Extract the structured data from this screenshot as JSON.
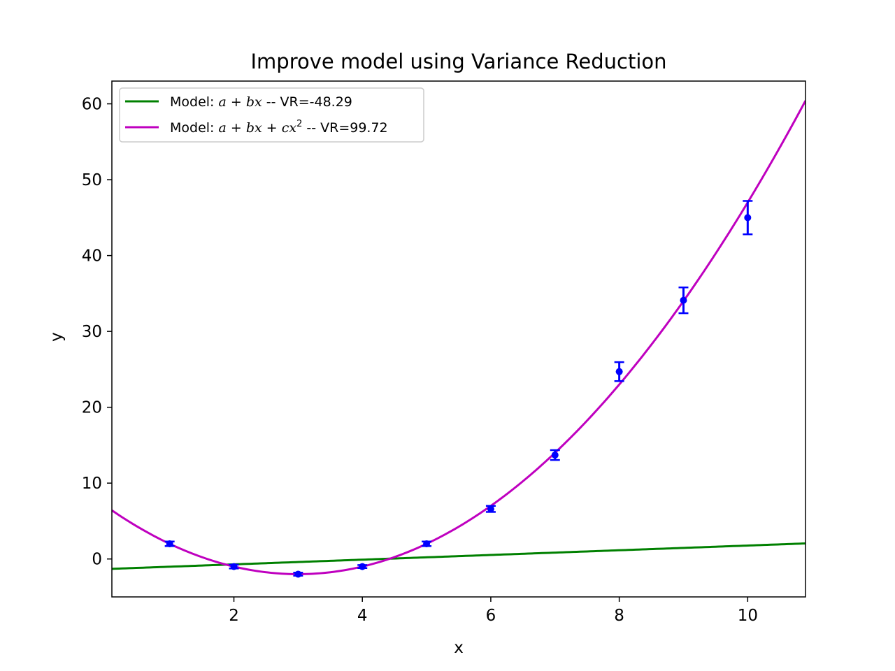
{
  "chart_data": {
    "type": "scatter",
    "title": "Improve model using Variance Reduction",
    "xlabel": "x",
    "ylabel": "y",
    "xlim": [
      0.1,
      10.9
    ],
    "ylim": [
      -5,
      63
    ],
    "xticks": [
      2,
      4,
      6,
      8,
      10
    ],
    "yticks": [
      0,
      10,
      20,
      30,
      40,
      50,
      60
    ],
    "grid": false,
    "legend_position": "top-left",
    "data_points": {
      "color": "#0000ff",
      "x": [
        1,
        2,
        3,
        4,
        5,
        6,
        7,
        8,
        9,
        10
      ],
      "y": [
        2.0,
        -1.0,
        -2.0,
        -1.0,
        2.0,
        6.6,
        13.7,
        24.7,
        34.1,
        45.0
      ],
      "yerr": [
        0.3,
        0.25,
        0.2,
        0.2,
        0.3,
        0.4,
        0.65,
        1.25,
        1.7,
        2.2
      ]
    },
    "series": [
      {
        "name": "Model: a + bx -- VR=-48.29",
        "legend_text": "Model: ",
        "legend_math": "a + bx",
        "legend_suffix": " -- VR=-48.29",
        "color": "#008000",
        "model": "linear",
        "coefficients": {
          "a": -1.33,
          "b": 0.31
        }
      },
      {
        "name": "Model: a + bx + cx² -- VR=99.72",
        "legend_text": "Model: ",
        "legend_math": "a + bx + cx",
        "legend_sup": "2",
        "legend_suffix": " -- VR=99.72",
        "color": "#bf00bf",
        "model": "quadratic",
        "coefficients": {
          "a": 7.0,
          "b": -6.0,
          "c": 1.0
        }
      }
    ]
  }
}
